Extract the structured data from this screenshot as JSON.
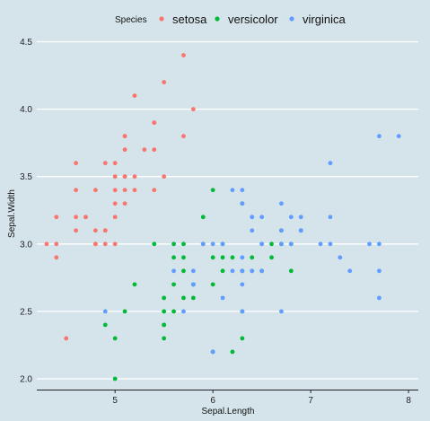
{
  "chart_data": {
    "type": "scatter",
    "title": "",
    "xlabel": "Sepal.Length",
    "ylabel": "Sepal.Width",
    "xlim": [
      4.2,
      8.1
    ],
    "ylim": [
      1.92,
      4.57
    ],
    "xticks": [
      5,
      6,
      7,
      8
    ],
    "yticks": [
      2.0,
      2.5,
      3.0,
      3.5,
      4.0,
      4.5
    ],
    "ytick_labels": [
      "2.0",
      "2.5",
      "3.0",
      "3.5",
      "4.0",
      "4.5"
    ],
    "grid": "horizontal",
    "legend": {
      "title": "Species",
      "placement": "top"
    },
    "series": [
      {
        "name": "setosa",
        "color": "#f8766d",
        "points": [
          [
            5.7,
            4.4
          ],
          [
            5.5,
            4.2
          ],
          [
            5.2,
            4.1
          ],
          [
            5.8,
            4.0
          ],
          [
            5.4,
            3.9
          ],
          [
            5.4,
            3.9
          ],
          [
            5.1,
            3.8
          ],
          [
            5.1,
            3.8
          ],
          [
            5.7,
            3.8
          ],
          [
            5.1,
            3.7
          ],
          [
            5.3,
            3.7
          ],
          [
            5.4,
            3.7
          ],
          [
            4.6,
            3.6
          ],
          [
            5.0,
            3.6
          ],
          [
            4.9,
            3.6
          ],
          [
            5.0,
            3.5
          ],
          [
            5.1,
            3.5
          ],
          [
            5.2,
            3.5
          ],
          [
            5.5,
            3.5
          ],
          [
            5.1,
            3.5
          ],
          [
            4.6,
            3.4
          ],
          [
            4.8,
            3.4
          ],
          [
            5.0,
            3.4
          ],
          [
            5.4,
            3.4
          ],
          [
            5.2,
            3.4
          ],
          [
            5.1,
            3.4
          ],
          [
            5.0,
            3.3
          ],
          [
            5.1,
            3.3
          ],
          [
            4.7,
            3.2
          ],
          [
            4.4,
            3.2
          ],
          [
            4.6,
            3.2
          ],
          [
            5.0,
            3.2
          ],
          [
            4.7,
            3.2
          ],
          [
            4.8,
            3.1
          ],
          [
            4.6,
            3.1
          ],
          [
            4.9,
            3.1
          ],
          [
            4.9,
            3.1
          ],
          [
            4.3,
            3.0
          ],
          [
            4.8,
            3.0
          ],
          [
            4.4,
            3.0
          ],
          [
            4.9,
            3.0
          ],
          [
            4.8,
            3.0
          ],
          [
            5.0,
            3.0
          ],
          [
            4.4,
            2.9
          ],
          [
            4.5,
            2.3
          ]
        ]
      },
      {
        "name": "versicolor",
        "color": "#00ba38",
        "points": [
          [
            6.0,
            3.4
          ],
          [
            5.9,
            3.2
          ],
          [
            6.3,
            3.3
          ],
          [
            6.7,
            3.1
          ],
          [
            6.9,
            3.1
          ],
          [
            5.4,
            3.0
          ],
          [
            5.6,
            3.0
          ],
          [
            5.9,
            3.0
          ],
          [
            6.1,
            3.0
          ],
          [
            6.6,
            3.0
          ],
          [
            6.8,
            3.0
          ],
          [
            6.7,
            3.0
          ],
          [
            5.7,
            3.0
          ],
          [
            6.0,
            2.9
          ],
          [
            5.6,
            2.9
          ],
          [
            6.1,
            2.9
          ],
          [
            6.2,
            2.9
          ],
          [
            6.4,
            2.9
          ],
          [
            6.6,
            2.9
          ],
          [
            5.7,
            2.9
          ],
          [
            5.8,
            2.7
          ],
          [
            6.0,
            2.7
          ],
          [
            5.2,
            2.7
          ],
          [
            5.6,
            2.7
          ],
          [
            5.8,
            2.7
          ],
          [
            6.3,
            2.8
          ],
          [
            6.5,
            2.8
          ],
          [
            6.1,
            2.8
          ],
          [
            6.8,
            2.8
          ],
          [
            5.7,
            2.8
          ],
          [
            5.5,
            2.6
          ],
          [
            5.8,
            2.6
          ],
          [
            5.7,
            2.6
          ],
          [
            5.6,
            2.5
          ],
          [
            5.5,
            2.5
          ],
          [
            5.1,
            2.5
          ],
          [
            6.3,
            2.5
          ],
          [
            5.5,
            2.4
          ],
          [
            5.5,
            2.4
          ],
          [
            4.9,
            2.4
          ],
          [
            6.3,
            2.3
          ],
          [
            5.0,
            2.3
          ],
          [
            5.5,
            2.3
          ],
          [
            6.2,
            2.2
          ],
          [
            6.0,
            2.2
          ],
          [
            5.0,
            2.0
          ]
        ]
      },
      {
        "name": "virginica",
        "color": "#619cff",
        "points": [
          [
            7.7,
            3.8
          ],
          [
            7.9,
            3.8
          ],
          [
            7.2,
            3.6
          ],
          [
            6.2,
            3.4
          ],
          [
            6.3,
            3.4
          ],
          [
            6.7,
            3.3
          ],
          [
            6.3,
            3.3
          ],
          [
            6.4,
            3.2
          ],
          [
            6.5,
            3.2
          ],
          [
            6.8,
            3.2
          ],
          [
            6.9,
            3.2
          ],
          [
            7.2,
            3.2
          ],
          [
            6.4,
            3.2
          ],
          [
            6.7,
            3.1
          ],
          [
            6.4,
            3.1
          ],
          [
            6.9,
            3.1
          ],
          [
            6.9,
            3.1
          ],
          [
            6.0,
            3.0
          ],
          [
            6.1,
            3.0
          ],
          [
            6.5,
            3.0
          ],
          [
            5.9,
            3.0
          ],
          [
            6.7,
            3.0
          ],
          [
            7.7,
            3.0
          ],
          [
            7.1,
            3.0
          ],
          [
            7.6,
            3.0
          ],
          [
            7.2,
            3.0
          ],
          [
            6.5,
            3.0
          ],
          [
            6.8,
            3.0
          ],
          [
            7.3,
            2.9
          ],
          [
            6.3,
            2.9
          ],
          [
            6.4,
            2.8
          ],
          [
            5.6,
            2.8
          ],
          [
            6.2,
            2.8
          ],
          [
            5.8,
            2.8
          ],
          [
            7.4,
            2.8
          ],
          [
            6.3,
            2.8
          ],
          [
            7.7,
            2.8
          ],
          [
            6.4,
            2.8
          ],
          [
            6.5,
            2.8
          ],
          [
            5.8,
            2.7
          ],
          [
            5.8,
            2.7
          ],
          [
            6.3,
            2.7
          ],
          [
            6.1,
            2.6
          ],
          [
            7.7,
            2.6
          ],
          [
            6.3,
            2.5
          ],
          [
            6.7,
            2.5
          ],
          [
            4.9,
            2.5
          ],
          [
            5.7,
            2.5
          ],
          [
            6.0,
            2.2
          ]
        ]
      }
    ]
  }
}
